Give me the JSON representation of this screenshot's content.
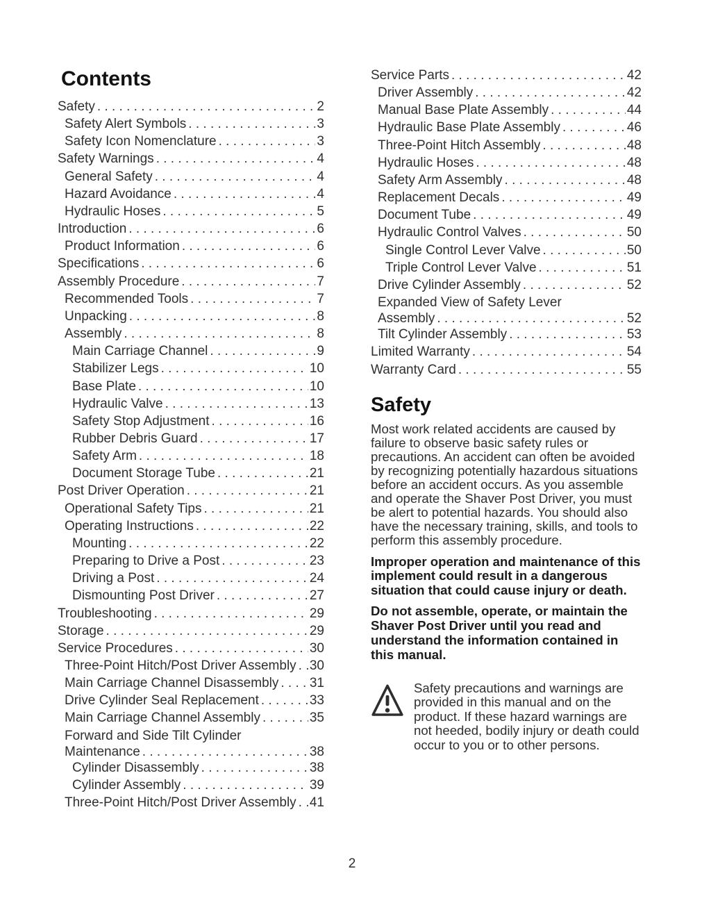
{
  "contents": {
    "heading": "Contents",
    "left_entries": [
      {
        "t": "Safety",
        "i": 0,
        "p": "2"
      },
      {
        "t": "Safety Alert Symbols",
        "i": 1,
        "p": "3"
      },
      {
        "t": "Safety Icon Nomenclature",
        "i": 1,
        "p": "3"
      },
      {
        "t": "Safety Warnings",
        "i": 0,
        "p": "4"
      },
      {
        "t": "General Safety",
        "i": 1,
        "p": "4"
      },
      {
        "t": "Hazard Avoidance",
        "i": 1,
        "p": "4"
      },
      {
        "t": "Hydraulic Hoses",
        "i": 1,
        "p": "5"
      },
      {
        "t": "Introduction",
        "i": 0,
        "p": "6"
      },
      {
        "t": "Product Information",
        "i": 1,
        "p": "6"
      },
      {
        "t": "Specifications",
        "i": 0,
        "p": "6"
      },
      {
        "t": "Assembly Procedure",
        "i": 0,
        "p": "7"
      },
      {
        "t": "Recommended Tools",
        "i": 1,
        "p": "7"
      },
      {
        "t": "Unpacking",
        "i": 1,
        "p": "8"
      },
      {
        "t": "Assembly",
        "i": 1,
        "p": "8"
      },
      {
        "t": "Main Carriage Channel",
        "i": 2,
        "p": "9"
      },
      {
        "t": "Stabilizer Legs",
        "i": 2,
        "p": "10"
      },
      {
        "t": "Base Plate",
        "i": 2,
        "p": "10"
      },
      {
        "t": "Hydraulic Valve",
        "i": 2,
        "p": "13"
      },
      {
        "t": "Safety Stop Adjustment",
        "i": 2,
        "p": "16"
      },
      {
        "t": "Rubber Debris Guard",
        "i": 2,
        "p": "17"
      },
      {
        "t": "Safety Arm",
        "i": 2,
        "p": "18"
      },
      {
        "t": "Document Storage Tube",
        "i": 2,
        "p": "21"
      },
      {
        "t": "Post Driver Operation",
        "i": 0,
        "p": "21"
      },
      {
        "t": "Operational Safety Tips",
        "i": 1,
        "p": "21"
      },
      {
        "t": "Operating Instructions",
        "i": 1,
        "p": "22"
      },
      {
        "t": "Mounting",
        "i": 2,
        "p": "22"
      },
      {
        "t": "Preparing to Drive a Post",
        "i": 2,
        "p": "23"
      },
      {
        "t": "Driving a Post",
        "i": 2,
        "p": "24"
      },
      {
        "t": "Dismounting Post Driver",
        "i": 2,
        "p": "27"
      },
      {
        "t": "Troubleshooting",
        "i": 0,
        "p": "29"
      },
      {
        "t": "Storage",
        "i": 0,
        "p": "29"
      },
      {
        "t": "Service Procedures",
        "i": 0,
        "p": "30"
      },
      {
        "t": "Three-Point Hitch/Post Driver Assembly",
        "i": 1,
        "p": "30"
      },
      {
        "t": "Main Carriage Channel Disassembly",
        "i": 1,
        "p": "31"
      },
      {
        "t": "Drive Cylinder Seal Replacement",
        "i": 1,
        "p": "33"
      },
      {
        "t": "Main Carriage Channel Assembly",
        "i": 1,
        "p": "35"
      },
      {
        "t": "Forward and Side Tilt Cylinder",
        "t2": "Maintenance",
        "i": 1,
        "p": "38"
      },
      {
        "t": "Cylinder Disassembly",
        "i": 2,
        "p": "38"
      },
      {
        "t": "Cylinder Assembly",
        "i": 2,
        "p": "39"
      },
      {
        "t": "Three-Point Hitch/Post Driver Assembly",
        "i": 1,
        "p": "41"
      }
    ],
    "right_entries": [
      {
        "t": "Service Parts",
        "i": 0,
        "p": "42"
      },
      {
        "t": "Driver Assembly",
        "i": 1,
        "p": "42"
      },
      {
        "t": "Manual Base Plate Assembly",
        "i": 1,
        "p": "44"
      },
      {
        "t": "Hydraulic Base Plate Assembly",
        "i": 1,
        "p": "46"
      },
      {
        "t": "Three-Point Hitch Assembly",
        "i": 1,
        "p": "48"
      },
      {
        "t": "Hydraulic Hoses",
        "i": 1,
        "p": "48"
      },
      {
        "t": "Safety Arm Assembly",
        "i": 1,
        "p": "48"
      },
      {
        "t": "Replacement Decals",
        "i": 1,
        "p": "49"
      },
      {
        "t": "Document Tube",
        "i": 1,
        "p": "49"
      },
      {
        "t": "Hydraulic Control Valves",
        "i": 1,
        "p": "50"
      },
      {
        "t": "Single Control Lever Valve",
        "i": 2,
        "p": "50"
      },
      {
        "t": "Triple Control Lever Valve",
        "i": 2,
        "p": "51"
      },
      {
        "t": "Drive Cylinder Assembly",
        "i": 1,
        "p": "52"
      },
      {
        "t": "Expanded View of Safety Lever",
        "t2": "Assembly",
        "i": 1,
        "p": "52"
      },
      {
        "t": "Tilt Cylinder Assembly",
        "i": 1,
        "p": "53"
      },
      {
        "t": "Limited Warranty",
        "i": 0,
        "p": "54"
      },
      {
        "t": "Warranty Card",
        "i": 0,
        "p": "55"
      }
    ]
  },
  "safety": {
    "heading": "Safety",
    "paragraphs": [
      {
        "style": "normal",
        "text": "Most work related accidents are caused by failure to observe basic safety rules or precautions.  An accident can often be avoided by recognizing potentially hazardous situations before an accident occurs.  As you assemble and operate the Shaver Post Driver, you must be alert to potential hazards.  You should also have the necessary training, skills, and tools to perform this assembly procedure."
      },
      {
        "style": "bold",
        "text": "Improper operation and maintenance of this implement could result in a dangerous situation that could cause injury or death."
      },
      {
        "style": "bold",
        "text": "Do not assemble, operate, or maintain the Shaver Post Driver until you read and understand the information contained in this manual."
      }
    ],
    "warning": {
      "icon": "warning-triangle-icon",
      "text": "Safety precautions and warnings are provided in this manual and on the product.  If these hazard warnings are not heeded, bodily injury or death could occur to you or to other persons."
    }
  },
  "footer": {
    "page_number": "2"
  }
}
